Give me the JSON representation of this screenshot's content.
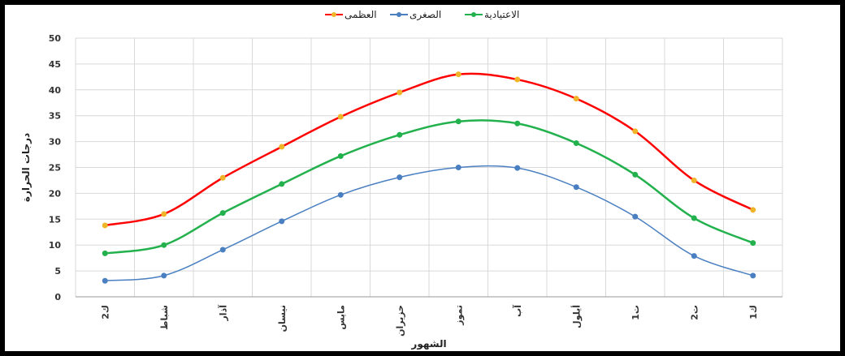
{
  "chart_data": {
    "type": "line",
    "xlabel": "الشهور",
    "ylabel": "درجات الحرارة",
    "ylim": [
      0,
      50
    ],
    "yticks": [
      0,
      5,
      10,
      15,
      20,
      25,
      30,
      35,
      40,
      45,
      50
    ],
    "grid": true,
    "legend": "top-center",
    "categories": [
      "ك2",
      "شباط",
      "آذار",
      "نيسان",
      "مايس",
      "حزيران",
      "تموز",
      "آب",
      "أيلول",
      "ت1",
      "ت2",
      "ك1"
    ],
    "series": [
      {
        "name": "العظمى",
        "color": "#ff0000",
        "marker_color": "#f0b429",
        "values": [
          13.8,
          16,
          23,
          29,
          34.8,
          39.5,
          43,
          42,
          38.3,
          32,
          22.5,
          16.8
        ]
      },
      {
        "name": "الصغرى",
        "color": "#4a7fc1",
        "marker_color": "#4a7fc1",
        "values": [
          3.1,
          4.1,
          9.1,
          14.6,
          19.7,
          23.1,
          25,
          24.9,
          21.2,
          15.5,
          7.9,
          4.1
        ]
      },
      {
        "name": "الاعتيادية",
        "color": "#22b14c",
        "marker_color": "#22b14c",
        "values": [
          8.4,
          10,
          16.2,
          21.8,
          27.2,
          31.3,
          33.9,
          33.5,
          29.7,
          23.6,
          15.2,
          10.4
        ]
      }
    ]
  }
}
